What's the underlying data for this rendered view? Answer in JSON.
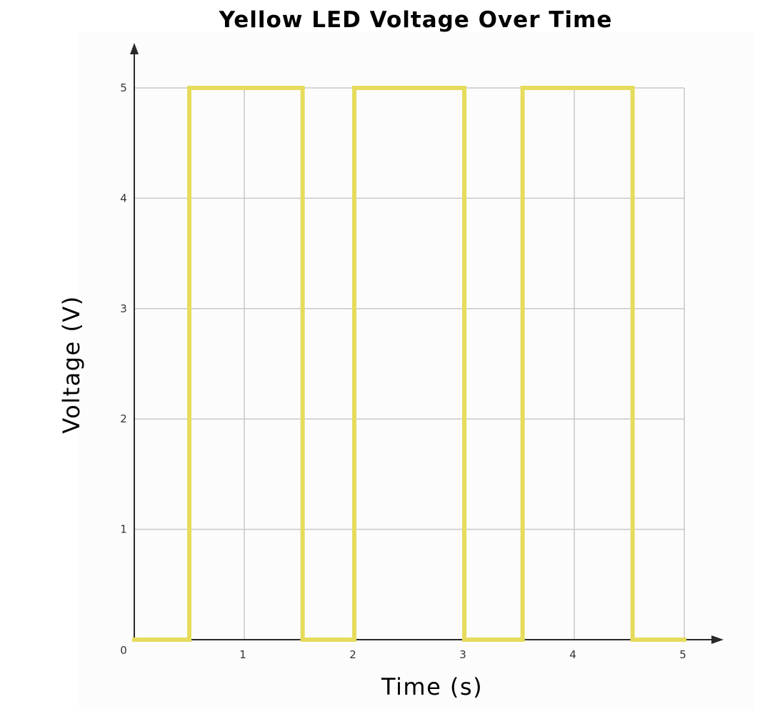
{
  "chart_data": {
    "type": "line",
    "title": "Yellow LED Voltage Over Time",
    "xlabel": "Time (s)",
    "ylabel": "Voltage (V)",
    "xlim": [
      0,
      5
    ],
    "ylim": [
      0,
      5
    ],
    "x_ticks": [
      "1",
      "2",
      "3",
      "4",
      "5"
    ],
    "y_ticks": [
      "0",
      "1",
      "2",
      "3",
      "4",
      "5"
    ],
    "grid": true,
    "line_color": "#e6dc5c",
    "background_color": "#fcfcfd",
    "series": [
      {
        "x": [
          0,
          0.5,
          0.5,
          1.53,
          1.53,
          2.0,
          2.0,
          3.0,
          3.0,
          3.53,
          3.53,
          4.53,
          4.53,
          5.0
        ],
        "values": [
          0,
          0,
          5,
          5,
          0,
          0,
          5,
          5,
          0,
          0,
          5,
          5,
          0,
          0
        ]
      }
    ]
  }
}
